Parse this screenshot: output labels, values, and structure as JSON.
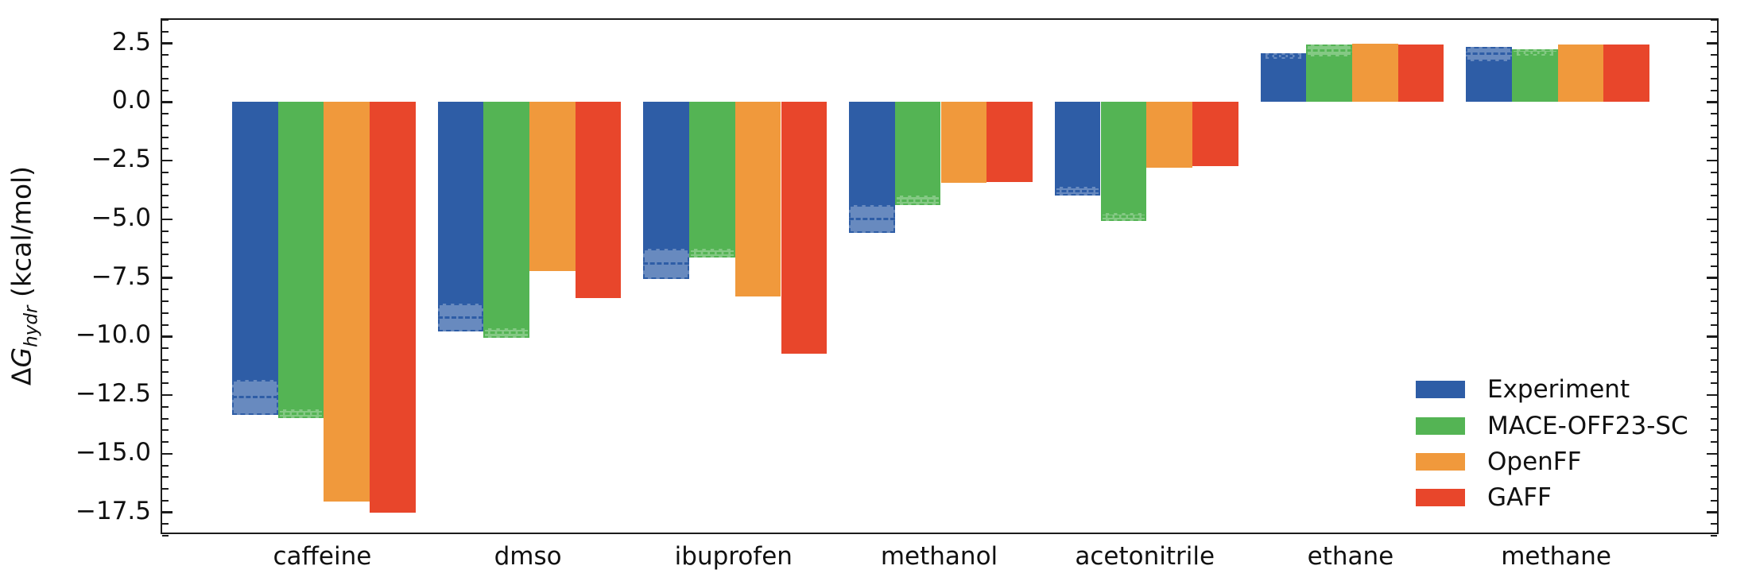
{
  "chart_data": {
    "type": "bar",
    "title": "",
    "ylabel": {
      "full": "ΔG_hydr (kcal/mol)",
      "delta": "Δ",
      "symbol": "G",
      "subscript": "hydr",
      "units": " (kcal/mol)"
    },
    "xlabel": "",
    "categories": [
      "caffeine",
      "dmso",
      "ibuprofen",
      "methanol",
      "acetonitrile",
      "ethane",
      "methane"
    ],
    "series": [
      {
        "name": "Experiment",
        "color": "#2e5da6",
        "values": [
          -12.6,
          -9.2,
          -6.9,
          -5.0,
          -3.8,
          1.95,
          2.05
        ],
        "errors": [
          0.75,
          0.6,
          0.65,
          0.6,
          0.18,
          0.12,
          0.3
        ]
      },
      {
        "name": "MACE-OFF23-SC",
        "color": "#54b454",
        "values": [
          -13.3,
          -9.85,
          -6.45,
          -4.2,
          -4.9,
          2.2,
          2.1
        ],
        "errors": [
          0.2,
          0.2,
          0.18,
          0.2,
          0.16,
          0.25,
          0.13
        ]
      },
      {
        "name": "OpenFF",
        "color": "#f0993c",
        "values": [
          -17.05,
          -7.2,
          -8.3,
          -3.45,
          -2.8,
          2.5,
          2.45
        ],
        "errors": [
          0,
          0,
          0,
          0,
          0,
          0,
          0
        ]
      },
      {
        "name": "GAFF",
        "color": "#e8462b",
        "values": [
          -17.5,
          -8.35,
          -10.75,
          -3.4,
          -2.75,
          2.45,
          2.45
        ],
        "errors": [
          0,
          0,
          0,
          0,
          0,
          0,
          0
        ]
      }
    ],
    "ylim": [
      -18.5,
      3.5
    ],
    "yticks_major": [
      2.5,
      0.0,
      -2.5,
      -5.0,
      -7.5,
      -10.0,
      -12.5,
      -15.0,
      -17.5
    ],
    "ytick_labels": [
      "2.5",
      "0.0",
      "−2.5",
      "−5.0",
      "−7.5",
      "−10.0",
      "−12.5",
      "−15.0",
      "−17.5"
    ],
    "minor_tick_step": 0.5,
    "grid": false,
    "legend": {
      "position": "lower right",
      "items": [
        "Experiment",
        "MACE-OFF23-SC",
        "OpenFF",
        "GAFF"
      ]
    }
  }
}
